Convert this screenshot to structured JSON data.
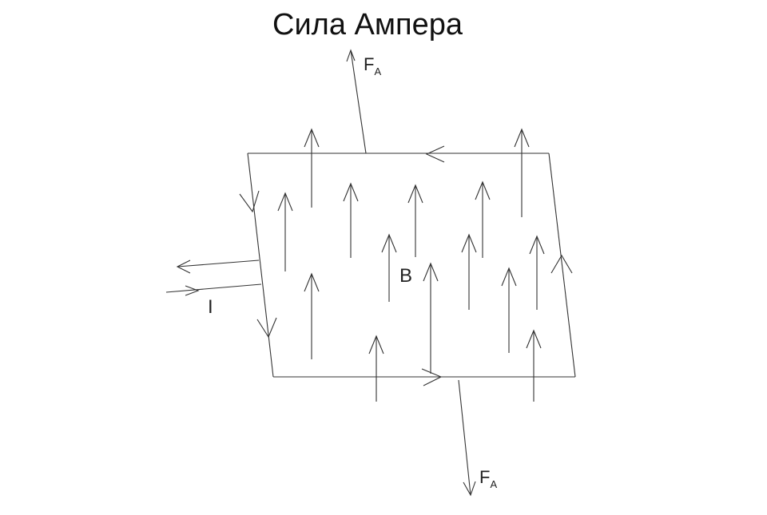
{
  "title": "Сила Ампера",
  "labels": {
    "field": "B",
    "current": "I",
    "force_main": "F",
    "force_sub": "A"
  },
  "colors": {
    "stroke": "#333333",
    "text": "#1a1a1a",
    "background": "#ffffff"
  }
}
